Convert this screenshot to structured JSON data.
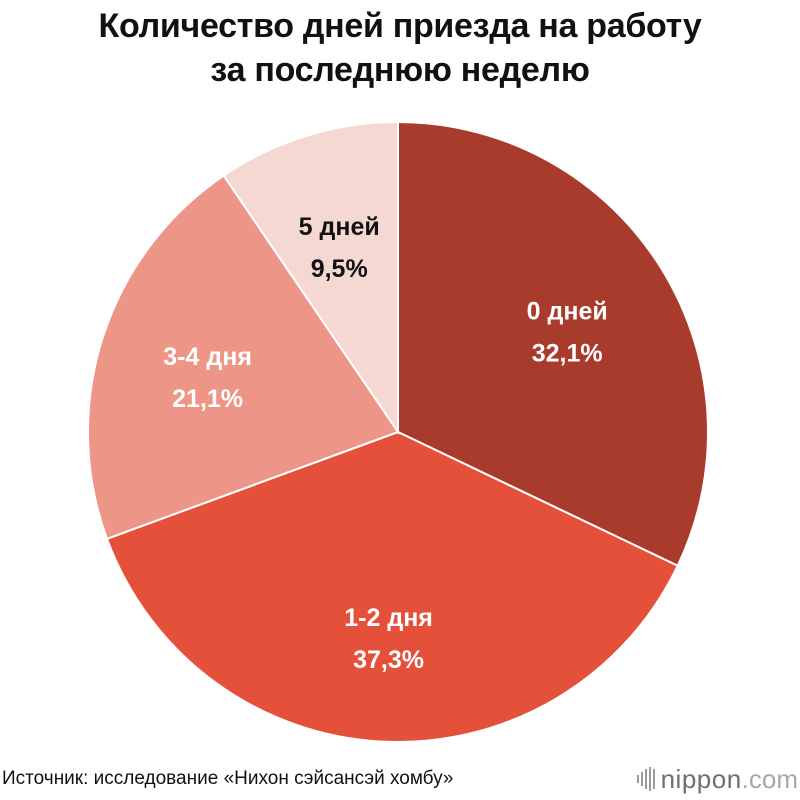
{
  "title_line1": "Количество дней приезда на работу",
  "title_line2": "за последнюю неделю",
  "source": "Источник: исследование «Нихон сэйсансэй хомбу»",
  "brand": {
    "name": "nippon",
    "tld": ".com"
  },
  "colors": {
    "zero_days": "#a93b2c",
    "one_two_days": "#e4503a",
    "three_four_days": "#ed9586",
    "five_days": "#f6d8d2"
  },
  "chart_data": {
    "type": "pie",
    "title": "Количество дней приезда на работу за последнюю неделю",
    "slices": [
      {
        "label": "0 дней",
        "value": 32.1,
        "value_label": "32,1%",
        "color": "#a93b2c",
        "text_color": "#ffffff"
      },
      {
        "label": "1-2 дня",
        "value": 37.3,
        "value_label": "37,3%",
        "color": "#e4503a",
        "text_color": "#ffffff"
      },
      {
        "label": "3-4 дня",
        "value": 21.1,
        "value_label": "21,1%",
        "color": "#ed9586",
        "text_color": "#ffffff"
      },
      {
        "label": "5 дней",
        "value": 9.5,
        "value_label": "9,5%",
        "color": "#f6d8d2",
        "text_color": "#111111"
      }
    ],
    "start": "12 o'clock",
    "direction": "clockwise"
  }
}
